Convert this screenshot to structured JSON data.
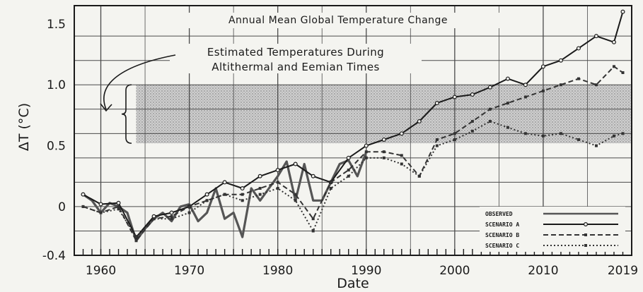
{
  "chart_data": {
    "type": "line",
    "title": "Annual Mean Global Temperature Change",
    "xlabel": "Date",
    "ylabel": "ΔT (°C)",
    "xlim": [
      1957,
      2020
    ],
    "ylim": [
      -0.4,
      1.65
    ],
    "y_ticks": [
      -0.4,
      0,
      0.5,
      1.0,
      1.5
    ],
    "y_tick_labels": [
      "-0.4",
      "0",
      "0.5",
      "1.0",
      "1.5"
    ],
    "x_ticks": [
      1960,
      1970,
      1980,
      1990,
      2000,
      2010,
      2019
    ],
    "x_tick_labels": [
      "1960",
      "1970",
      "1980",
      "1990",
      "2000",
      "2010",
      "2019"
    ],
    "grid": true,
    "legend_position": "bottom-right",
    "band": {
      "label_line1": "Estimated Temperatures During",
      "label_line2": "Altithermal and Eemian Times",
      "y_low": 0.52,
      "y_high": 1.0,
      "x_start": 1964
    },
    "series": [
      {
        "name": "OBSERVED",
        "color": "#555555",
        "style": "solid",
        "x": [
          1958,
          1959,
          1960,
          1961,
          1962,
          1963,
          1964,
          1965,
          1966,
          1967,
          1968,
          1969,
          1970,
          1971,
          1972,
          1973,
          1974,
          1975,
          1976,
          1977,
          1978,
          1979,
          1980,
          1981,
          1982,
          1983,
          1984,
          1985,
          1986,
          1987,
          1988,
          1989,
          1990
        ],
        "values": [
          0.1,
          0.05,
          -0.05,
          0.03,
          0.0,
          -0.05,
          -0.28,
          -0.18,
          -0.1,
          -0.05,
          -0.12,
          0.0,
          0.02,
          -0.12,
          -0.05,
          0.15,
          -0.1,
          -0.05,
          -0.25,
          0.15,
          0.05,
          0.15,
          0.25,
          0.37,
          0.05,
          0.35,
          0.05,
          0.05,
          0.2,
          0.35,
          0.38,
          0.25,
          0.45
        ]
      },
      {
        "name": "SCENARIO A",
        "color": "#1a1a1a",
        "style": "solid-marker",
        "x": [
          1958,
          1960,
          1962,
          1964,
          1966,
          1968,
          1970,
          1972,
          1974,
          1976,
          1978,
          1980,
          1982,
          1984,
          1986,
          1988,
          1990,
          1992,
          1994,
          1996,
          1998,
          2000,
          2002,
          2004,
          2006,
          2008,
          2010,
          2012,
          2014,
          2016,
          2018,
          2019
        ],
        "values": [
          0.1,
          0.02,
          0.03,
          -0.25,
          -0.08,
          -0.05,
          0.0,
          0.1,
          0.2,
          0.15,
          0.25,
          0.3,
          0.35,
          0.25,
          0.2,
          0.4,
          0.5,
          0.55,
          0.6,
          0.7,
          0.85,
          0.9,
          0.92,
          0.98,
          1.05,
          1.0,
          1.15,
          1.2,
          1.3,
          1.4,
          1.35,
          1.6
        ]
      },
      {
        "name": "SCENARIO B",
        "color": "#333333",
        "style": "dashed",
        "x": [
          1958,
          1960,
          1962,
          1964,
          1966,
          1968,
          1970,
          1972,
          1974,
          1976,
          1978,
          1980,
          1982,
          1984,
          1986,
          1988,
          1990,
          1992,
          1994,
          1996,
          1998,
          2000,
          2002,
          2004,
          2006,
          2008,
          2010,
          2012,
          2014,
          2016,
          2018,
          2019
        ],
        "values": [
          0.0,
          -0.05,
          0.0,
          -0.28,
          -0.1,
          -0.08,
          0.0,
          0.05,
          0.1,
          0.1,
          0.15,
          0.2,
          0.1,
          -0.1,
          0.2,
          0.3,
          0.45,
          0.45,
          0.42,
          0.25,
          0.55,
          0.6,
          0.7,
          0.8,
          0.85,
          0.9,
          0.95,
          1.0,
          1.05,
          1.0,
          1.15,
          1.1
        ]
      },
      {
        "name": "SCENARIO C",
        "color": "#333333",
        "style": "dotted",
        "x": [
          1958,
          1960,
          1962,
          1964,
          1966,
          1968,
          1970,
          1972,
          1974,
          1976,
          1978,
          1980,
          1982,
          1984,
          1986,
          1988,
          1990,
          1992,
          1994,
          1996,
          1998,
          2000,
          2002,
          2004,
          2006,
          2008,
          2010,
          2012,
          2014,
          2016,
          2018,
          2019
        ],
        "values": [
          0.0,
          -0.05,
          -0.02,
          -0.25,
          -0.1,
          -0.1,
          -0.05,
          0.05,
          0.1,
          0.05,
          0.1,
          0.15,
          0.05,
          -0.2,
          0.15,
          0.25,
          0.4,
          0.4,
          0.35,
          0.25,
          0.5,
          0.55,
          0.62,
          0.7,
          0.65,
          0.6,
          0.58,
          0.6,
          0.55,
          0.5,
          0.58,
          0.6
        ]
      }
    ]
  }
}
